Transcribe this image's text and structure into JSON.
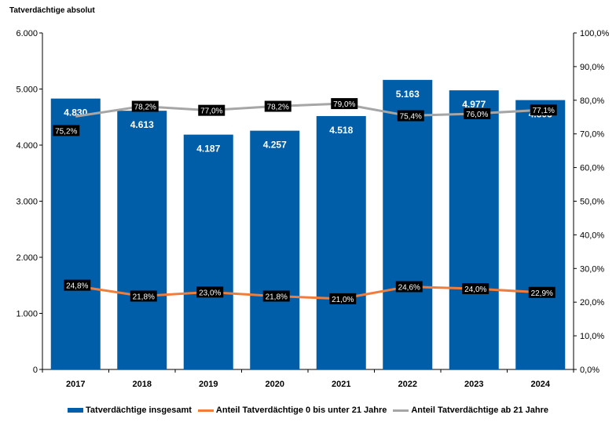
{
  "chart_data": {
    "type": "bar",
    "ylabel": "Tatverdächtige absolut",
    "categories": [
      "2017",
      "2018",
      "2019",
      "2020",
      "2021",
      "2022",
      "2023",
      "2024"
    ],
    "ylim": [
      0,
      6000
    ],
    "y_ticks": [
      "0",
      "1.000",
      "2.000",
      "3.000",
      "4.000",
      "5.000",
      "6.000"
    ],
    "y2lim": [
      0,
      100
    ],
    "y2_ticks": [
      "0,0%",
      "10,0%",
      "20,0%",
      "30,0%",
      "40,0%",
      "50,0%",
      "60,0%",
      "70,0%",
      "80,0%",
      "90,0%",
      "100,0%"
    ],
    "legend_position": "bottom",
    "series": [
      {
        "name": "Tatverdächtige insgesamt",
        "kind": "bar",
        "axis": "left",
        "color": "#005ea8",
        "values": [
          4830,
          4613,
          4187,
          4257,
          4518,
          5163,
          4977,
          4803
        ],
        "labels": [
          "4.830",
          "4.613",
          "4.187",
          "4.257",
          "4.518",
          "5.163",
          "4.977",
          "4.803"
        ]
      },
      {
        "name": "Anteil Tatverdächtige 0 bis unter 21 Jahre",
        "kind": "line",
        "axis": "right",
        "color": "#f07d3a",
        "values": [
          24.8,
          21.8,
          23.0,
          21.8,
          21.0,
          24.6,
          24.0,
          22.9
        ],
        "labels": [
          "24,8%",
          "21,8%",
          "23,0%",
          "21,8%",
          "21,0%",
          "24,6%",
          "24,0%",
          "22,9%"
        ]
      },
      {
        "name": "Anteil Tatverdächtige ab 21 Jahre",
        "kind": "line",
        "axis": "right",
        "color": "#a6a6a6",
        "values": [
          75.2,
          78.2,
          77.0,
          78.2,
          79.0,
          75.4,
          76.0,
          77.1
        ],
        "labels": [
          "75,2%",
          "78,2%",
          "77,0%",
          "78,2%",
          "79,0%",
          "75,4%",
          "76,0%",
          "77,1%"
        ]
      }
    ]
  }
}
